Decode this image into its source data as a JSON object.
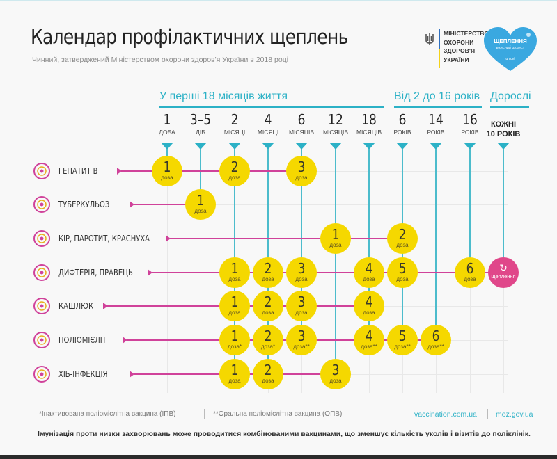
{
  "header": {
    "title": "Календар профілактичних щеплень",
    "subtitle": "Чинний, затверджений Міністерством охорони здоров'я України в 2018 році",
    "ministry_logo_text": "МІНІСТЕРСТВО\nОХОРОНИ\nЗДОРОВ'Я\nУКРАЇНИ",
    "campaign_logo": {
      "title": "ЩЕПЛЕННЯ",
      "subtitle": "ВЧАСНИЙ ЗАХИСТ",
      "partner": "unicef"
    }
  },
  "age_groups": [
    {
      "label": "У перші 18 місяців життя"
    },
    {
      "label": "Від 2 до 16 років"
    },
    {
      "label": "Дорослі"
    }
  ],
  "ages": [
    {
      "num": "1",
      "unit": "ДОБА"
    },
    {
      "num": "3–5",
      "unit": "ДІБ"
    },
    {
      "num": "2",
      "unit": "МІСЯЦІ"
    },
    {
      "num": "4",
      "unit": "МІСЯЦІ"
    },
    {
      "num": "6",
      "unit": "МІСЯЦІВ"
    },
    {
      "num": "12",
      "unit": "МІСЯЦІВ"
    },
    {
      "num": "18",
      "unit": "МІСЯЦІВ"
    },
    {
      "num": "6",
      "unit": "РОКІВ"
    },
    {
      "num": "14",
      "unit": "РОКІВ"
    },
    {
      "num": "16",
      "unit": "РОКІВ"
    },
    {
      "adult_line1": "КОЖНІ",
      "adult_line2": "10 РОКІВ"
    }
  ],
  "diseases": [
    {
      "name": "ГЕПАТИТ В",
      "icon": "hepatitis-virus-icon"
    },
    {
      "name": "ТУБЕРКУЛЬОЗ",
      "icon": "tuberculosis-bacteria-icon"
    },
    {
      "name": "КІР, ПАРОТИТ, КРАСНУХА",
      "icon": "measles-virus-icon"
    },
    {
      "name": "ДИФТЕРІЯ, ПРАВЕЦЬ",
      "icon": "diphtheria-bacteria-icon"
    },
    {
      "name": "КАШЛЮК",
      "icon": "pertussis-bacteria-icon"
    },
    {
      "name": "ПОЛІОМІЄЛІТ",
      "icon": "polio-virus-icon"
    },
    {
      "name": "ХІБ-ІНФЕКЦІЯ",
      "icon": "hib-bacteria-icon"
    }
  ],
  "doses": [
    [
      {
        "col": 0,
        "num": "1",
        "label": "доза"
      },
      {
        "col": 2,
        "num": "2",
        "label": "доза"
      },
      {
        "col": 4,
        "num": "3",
        "label": "доза"
      }
    ],
    [
      {
        "col": 1,
        "num": "1",
        "label": "доза"
      }
    ],
    [
      {
        "col": 5,
        "num": "1",
        "label": "доза"
      },
      {
        "col": 7,
        "num": "2",
        "label": "доза"
      }
    ],
    [
      {
        "col": 2,
        "num": "1",
        "label": "доза"
      },
      {
        "col": 3,
        "num": "2",
        "label": "доза"
      },
      {
        "col": 4,
        "num": "3",
        "label": "доза"
      },
      {
        "col": 6,
        "num": "4",
        "label": "доза"
      },
      {
        "col": 7,
        "num": "5",
        "label": "доза"
      },
      {
        "col": 9,
        "num": "6",
        "label": "доза"
      }
    ],
    [
      {
        "col": 2,
        "num": "1",
        "label": "доза"
      },
      {
        "col": 3,
        "num": "2",
        "label": "доза"
      },
      {
        "col": 4,
        "num": "3",
        "label": "доза"
      },
      {
        "col": 6,
        "num": "4",
        "label": "доза"
      }
    ],
    [
      {
        "col": 2,
        "num": "1",
        "label": "доза*"
      },
      {
        "col": 3,
        "num": "2",
        "label": "доза*"
      },
      {
        "col": 4,
        "num": "3",
        "label": "доза**"
      },
      {
        "col": 6,
        "num": "4",
        "label": "доза**"
      },
      {
        "col": 7,
        "num": "5",
        "label": "доза**"
      },
      {
        "col": 8,
        "num": "6",
        "label": "доза**"
      }
    ],
    [
      {
        "col": 2,
        "num": "1",
        "label": "доза"
      },
      {
        "col": 3,
        "num": "2",
        "label": "доза"
      },
      {
        "col": 5,
        "num": "3",
        "label": "доза"
      }
    ]
  ],
  "booster": {
    "row": 3,
    "col": 10,
    "icon": "refresh-icon",
    "label": "щеплення"
  },
  "footer": {
    "note1": "*Інактивована поліомієлітна вакцина (ІПВ)",
    "note2": "**Оральна поліомієлітна вакцина (ОПВ)",
    "link1": "vaccination.com.ua",
    "link2": "moz.gov.ua",
    "bottom_note": "Імунізація проти низки захворювань може проводитися комбінованими вакцинами, що зменшує кількість уколів і візитів до поліклінік."
  },
  "colors": {
    "accent": "#2cb1c6",
    "dose": "#f5d800",
    "line": "#d0429a",
    "booster": "#e0478a",
    "heart": "#3aa8e0"
  }
}
